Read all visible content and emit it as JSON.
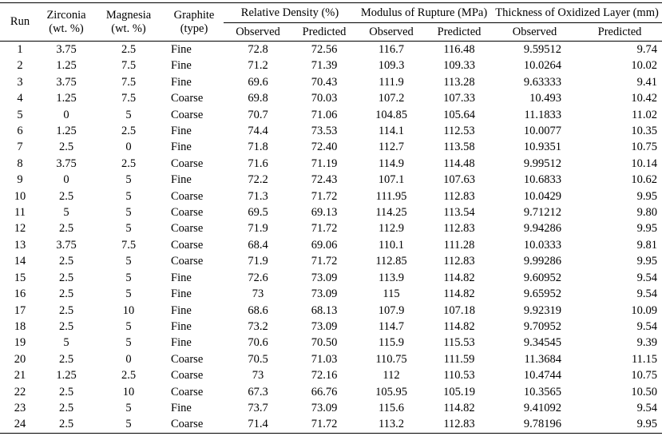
{
  "table": {
    "headers": {
      "run": "Run",
      "zirconia": "Zirconia",
      "zirconia_unit": "(wt. %)",
      "magnesia": "Magnesia",
      "magnesia_unit": "(wt. %)",
      "graphite": "Graphite",
      "graphite_unit": "(type)",
      "relative_density": "Relative Density (%)",
      "modulus_of_rupture": "Modulus of Rupture (MPa)",
      "thickness_oxidized": "Thickness of Oxidized Layer (mm)",
      "observed": "Observed",
      "predicted": "Predicted"
    },
    "rows": [
      [
        "1",
        "3.75",
        "2.5",
        "Fine",
        "72.8",
        "72.56",
        "116.7",
        "116.48",
        "9.59512",
        "9.74"
      ],
      [
        "2",
        "1.25",
        "7.5",
        "Fine",
        "71.2",
        "71.39",
        "109.3",
        "109.33",
        "10.0264",
        "10.02"
      ],
      [
        "3",
        "3.75",
        "7.5",
        "Fine",
        "69.6",
        "70.43",
        "111.9",
        "113.28",
        "9.63333",
        "9.41"
      ],
      [
        "4",
        "1.25",
        "7.5",
        "Coarse",
        "69.8",
        "70.03",
        "107.2",
        "107.33",
        "10.493",
        "10.42"
      ],
      [
        "5",
        "0",
        "5",
        "Coarse",
        "70.7",
        "71.06",
        "104.85",
        "105.64",
        "11.1833",
        "11.02"
      ],
      [
        "6",
        "1.25",
        "2.5",
        "Fine",
        "74.4",
        "73.53",
        "114.1",
        "112.53",
        "10.0077",
        "10.35"
      ],
      [
        "7",
        "2.5",
        "0",
        "Fine",
        "71.8",
        "72.40",
        "112.7",
        "113.58",
        "10.9351",
        "10.75"
      ],
      [
        "8",
        "3.75",
        "2.5",
        "Coarse",
        "71.6",
        "71.19",
        "114.9",
        "114.48",
        "9.99512",
        "10.14"
      ],
      [
        "9",
        "0",
        "5",
        "Fine",
        "72.2",
        "72.43",
        "107.1",
        "107.63",
        "10.6833",
        "10.62"
      ],
      [
        "10",
        "2.5",
        "5",
        "Coarse",
        "71.3",
        "71.72",
        "111.95",
        "112.83",
        "10.0429",
        "9.95"
      ],
      [
        "11",
        "5",
        "5",
        "Coarse",
        "69.5",
        "69.13",
        "114.25",
        "113.54",
        "9.71212",
        "9.80"
      ],
      [
        "12",
        "2.5",
        "5",
        "Coarse",
        "71.9",
        "71.72",
        "112.9",
        "112.83",
        "9.94286",
        "9.95"
      ],
      [
        "13",
        "3.75",
        "7.5",
        "Coarse",
        "68.4",
        "69.06",
        "110.1",
        "111.28",
        "10.0333",
        "9.81"
      ],
      [
        "14",
        "2.5",
        "5",
        "Coarse",
        "71.9",
        "71.72",
        "112.85",
        "112.83",
        "9.99286",
        "9.95"
      ],
      [
        "15",
        "2.5",
        "5",
        "Fine",
        "72.6",
        "73.09",
        "113.9",
        "114.82",
        "9.60952",
        "9.54"
      ],
      [
        "16",
        "2.5",
        "5",
        "Fine",
        "73",
        "73.09",
        "115",
        "114.82",
        "9.65952",
        "9.54"
      ],
      [
        "17",
        "2.5",
        "10",
        "Fine",
        "68.6",
        "68.13",
        "107.9",
        "107.18",
        "9.92319",
        "10.09"
      ],
      [
        "18",
        "2.5",
        "5",
        "Fine",
        "73.2",
        "73.09",
        "114.7",
        "114.82",
        "9.70952",
        "9.54"
      ],
      [
        "19",
        "5",
        "5",
        "Fine",
        "70.6",
        "70.50",
        "115.9",
        "115.53",
        "9.34545",
        "9.39"
      ],
      [
        "20",
        "2.5",
        "0",
        "Coarse",
        "70.5",
        "71.03",
        "110.75",
        "111.59",
        "11.3684",
        "11.15"
      ],
      [
        "21",
        "1.25",
        "2.5",
        "Coarse",
        "73",
        "72.16",
        "112",
        "110.53",
        "10.4744",
        "10.75"
      ],
      [
        "22",
        "2.5",
        "10",
        "Coarse",
        "67.3",
        "66.76",
        "105.95",
        "105.19",
        "10.3565",
        "10.50"
      ],
      [
        "23",
        "2.5",
        "5",
        "Fine",
        "73.7",
        "73.09",
        "115.6",
        "114.82",
        "9.41092",
        "9.54"
      ],
      [
        "24",
        "2.5",
        "5",
        "Coarse",
        "71.4",
        "71.72",
        "113.2",
        "112.83",
        "9.78196",
        "9.95"
      ]
    ]
  }
}
